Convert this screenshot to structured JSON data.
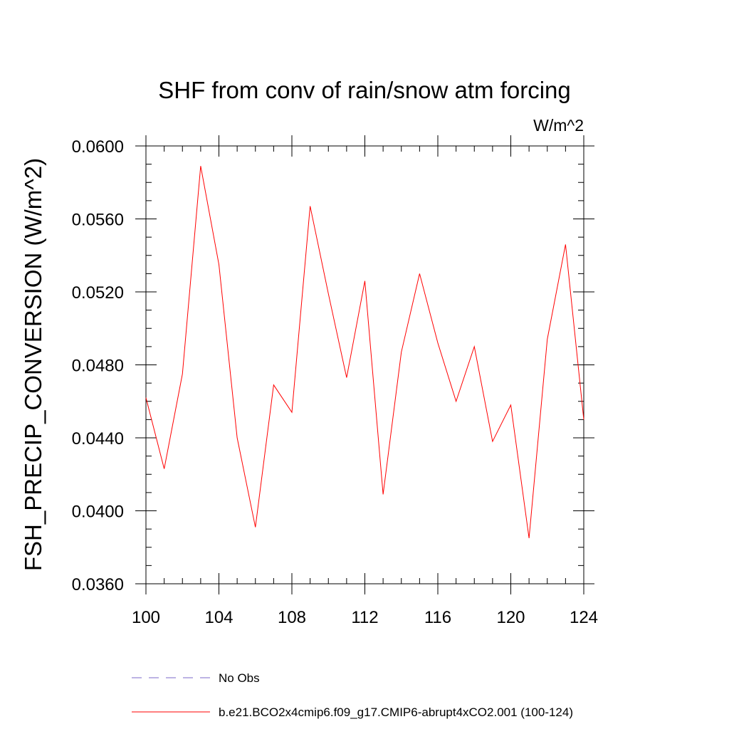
{
  "chart_data": {
    "type": "line",
    "title": "SHF from conv of rain/snow atm forcing",
    "units_label": "W/m^2",
    "ylabel": "FSH_PRECIP_CONVERSION  (W/m^2)",
    "xlabel": "",
    "xlim": [
      100,
      124
    ],
    "ylim": [
      0.036,
      0.06
    ],
    "x_ticks": [
      100,
      104,
      108,
      112,
      116,
      120,
      124
    ],
    "y_ticks": [
      "0.0360",
      "0.0400",
      "0.0440",
      "0.0480",
      "0.0520",
      "0.0560",
      "0.0600"
    ],
    "grid": false,
    "legend_position": "bottom",
    "series": [
      {
        "name": "b.e21.BCO2x4cmip6.f09_g17.CMIP6-abrupt4xCO2.001 (100-124)",
        "color": "#ff0000",
        "style": "solid",
        "x": [
          100,
          101,
          102,
          103,
          104,
          105,
          106,
          107,
          108,
          109,
          110,
          111,
          112,
          113,
          114,
          115,
          116,
          117,
          118,
          119,
          120,
          121,
          122,
          123,
          124
        ],
        "values": [
          0.0462,
          0.0423,
          0.0475,
          0.0589,
          0.0535,
          0.044,
          0.0391,
          0.0469,
          0.0454,
          0.0567,
          0.0519,
          0.0473,
          0.0526,
          0.0409,
          0.0487,
          0.053,
          0.0492,
          0.046,
          0.049,
          0.0438,
          0.0458,
          0.0385,
          0.0494,
          0.0546,
          0.045
        ]
      },
      {
        "name": "No Obs",
        "color": "#7b68c8",
        "style": "dashed",
        "x": [],
        "values": []
      }
    ]
  }
}
